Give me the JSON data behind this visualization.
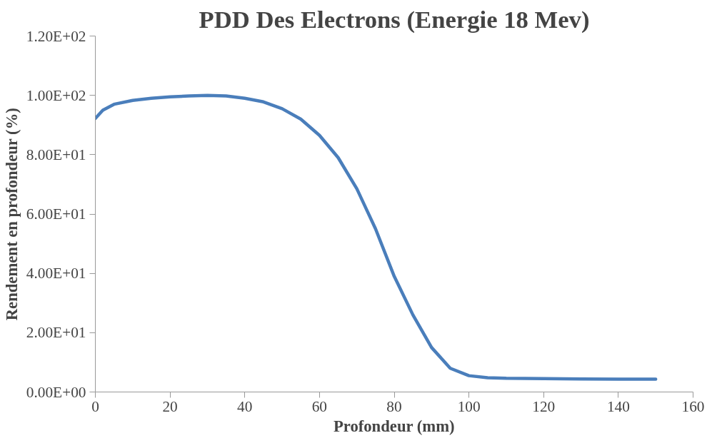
{
  "chart_data": {
    "type": "line",
    "title": "PDD Des Electrons (Energie 18 Mev)",
    "xlabel": "Profondeur (mm)",
    "ylabel": "Rendement en profondeur (%)",
    "x": [
      0,
      2,
      5,
      10,
      15,
      20,
      25,
      30,
      35,
      40,
      45,
      50,
      55,
      60,
      65,
      70,
      75,
      80,
      85,
      90,
      95,
      100,
      105,
      110,
      120,
      130,
      140,
      150
    ],
    "series": [
      {
        "color": "#4a7ebb",
        "values": [
          92.2,
          95,
          97,
          98.3,
          99,
          99.5,
          99.8,
          100,
          99.8,
          99,
          97.8,
          95.5,
          92,
          86.5,
          79,
          68.5,
          55,
          39,
          26,
          15,
          8,
          5.5,
          4.8,
          4.6,
          4.5,
          4.4,
          4.3,
          4.3
        ]
      }
    ],
    "xlim": [
      0,
      160
    ],
    "xticks": [
      0,
      20,
      40,
      60,
      80,
      100,
      120,
      140,
      160
    ],
    "ylim": [
      0,
      120
    ],
    "yticks": [
      {
        "value": 0,
        "label": "0.00E+00"
      },
      {
        "value": 20,
        "label": "2.00E+01"
      },
      {
        "value": 40,
        "label": "4.00E+01"
      },
      {
        "value": 60,
        "label": "6.00E+01"
      },
      {
        "value": 80,
        "label": "8.00E+01"
      },
      {
        "value": 100,
        "label": "1.00E+02"
      },
      {
        "value": 120,
        "label": "1.20E+02"
      }
    ],
    "grid": false,
    "marker": "none",
    "line_style": "solid"
  }
}
